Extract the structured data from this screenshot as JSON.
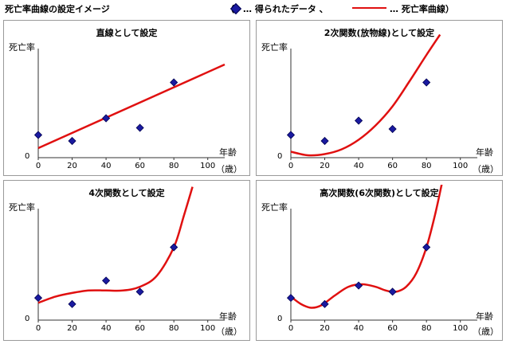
{
  "header": {
    "title": "死亡率曲線の設定イメージ",
    "legend_open": "（",
    "legend_points": "… 得られたデータ 、",
    "legend_curve": "… 死亡率曲線）"
  },
  "colors": {
    "points": "#1a1aa0",
    "curve": "#e01010",
    "axis": "#333333"
  },
  "axis_text": {
    "ylabel": "死亡率",
    "zero": "0",
    "xlabel": "年齢",
    "xunit": "（歳）"
  },
  "chart_data": [
    {
      "type": "scatter",
      "title": "直線として設定",
      "x_ticks": [
        "0",
        "20",
        "40",
        "60",
        "80",
        "100"
      ],
      "xlim": [
        0,
        110
      ],
      "ylim": [
        0,
        1
      ],
      "points": [
        {
          "x": 0,
          "y": 0.19
        },
        {
          "x": 20,
          "y": 0.14
        },
        {
          "x": 40,
          "y": 0.33
        },
        {
          "x": 60,
          "y": 0.25
        },
        {
          "x": 80,
          "y": 0.63
        }
      ],
      "curve": [
        {
          "x": 0,
          "y": 0.08
        },
        {
          "x": 110,
          "y": 0.78
        }
      ]
    },
    {
      "type": "scatter",
      "title": "2次関数(放物線)として設定",
      "x_ticks": [
        "0",
        "20",
        "40",
        "60",
        "80",
        "100"
      ],
      "xlim": [
        0,
        110
      ],
      "ylim": [
        0,
        1
      ],
      "points": [
        {
          "x": 0,
          "y": 0.19
        },
        {
          "x": 20,
          "y": 0.14
        },
        {
          "x": 40,
          "y": 0.31
        },
        {
          "x": 60,
          "y": 0.24
        },
        {
          "x": 80,
          "y": 0.63
        }
      ],
      "curve": [
        {
          "x": 0,
          "y": 0.05
        },
        {
          "x": 10,
          "y": 0.02
        },
        {
          "x": 20,
          "y": 0.03
        },
        {
          "x": 30,
          "y": 0.07
        },
        {
          "x": 40,
          "y": 0.15
        },
        {
          "x": 50,
          "y": 0.27
        },
        {
          "x": 60,
          "y": 0.43
        },
        {
          "x": 70,
          "y": 0.64
        },
        {
          "x": 80,
          "y": 0.86
        },
        {
          "x": 88,
          "y": 1.03
        }
      ]
    },
    {
      "type": "scatter",
      "title": "4次関数として設定",
      "x_ticks": [
        "0",
        "20",
        "40",
        "60",
        "80",
        "100"
      ],
      "xlim": [
        0,
        110
      ],
      "ylim": [
        0,
        1
      ],
      "points": [
        {
          "x": 0,
          "y": 0.18
        },
        {
          "x": 20,
          "y": 0.13
        },
        {
          "x": 40,
          "y": 0.32
        },
        {
          "x": 60,
          "y": 0.23
        },
        {
          "x": 80,
          "y": 0.59
        }
      ],
      "curve": [
        {
          "x": 0,
          "y": 0.14
        },
        {
          "x": 10,
          "y": 0.19
        },
        {
          "x": 20,
          "y": 0.22
        },
        {
          "x": 30,
          "y": 0.24
        },
        {
          "x": 40,
          "y": 0.24
        },
        {
          "x": 50,
          "y": 0.24
        },
        {
          "x": 60,
          "y": 0.27
        },
        {
          "x": 70,
          "y": 0.36
        },
        {
          "x": 80,
          "y": 0.59
        },
        {
          "x": 86,
          "y": 0.85
        },
        {
          "x": 91,
          "y": 1.08
        }
      ]
    },
    {
      "type": "scatter",
      "title": "高次関数(6次関数)として設定",
      "x_ticks": [
        "0",
        "20",
        "40",
        "60",
        "80",
        "100"
      ],
      "xlim": [
        0,
        110
      ],
      "ylim": [
        0,
        1
      ],
      "points": [
        {
          "x": 0,
          "y": 0.18
        },
        {
          "x": 20,
          "y": 0.13
        },
        {
          "x": 40,
          "y": 0.28
        },
        {
          "x": 60,
          "y": 0.23
        },
        {
          "x": 80,
          "y": 0.59
        }
      ],
      "curve": [
        {
          "x": 0,
          "y": 0.19
        },
        {
          "x": 6,
          "y": 0.13
        },
        {
          "x": 12,
          "y": 0.1
        },
        {
          "x": 18,
          "y": 0.12
        },
        {
          "x": 26,
          "y": 0.2
        },
        {
          "x": 34,
          "y": 0.27
        },
        {
          "x": 42,
          "y": 0.29
        },
        {
          "x": 50,
          "y": 0.27
        },
        {
          "x": 56,
          "y": 0.24
        },
        {
          "x": 62,
          "y": 0.23
        },
        {
          "x": 68,
          "y": 0.27
        },
        {
          "x": 74,
          "y": 0.38
        },
        {
          "x": 80,
          "y": 0.59
        },
        {
          "x": 85,
          "y": 0.85
        },
        {
          "x": 89,
          "y": 1.1
        }
      ]
    }
  ]
}
